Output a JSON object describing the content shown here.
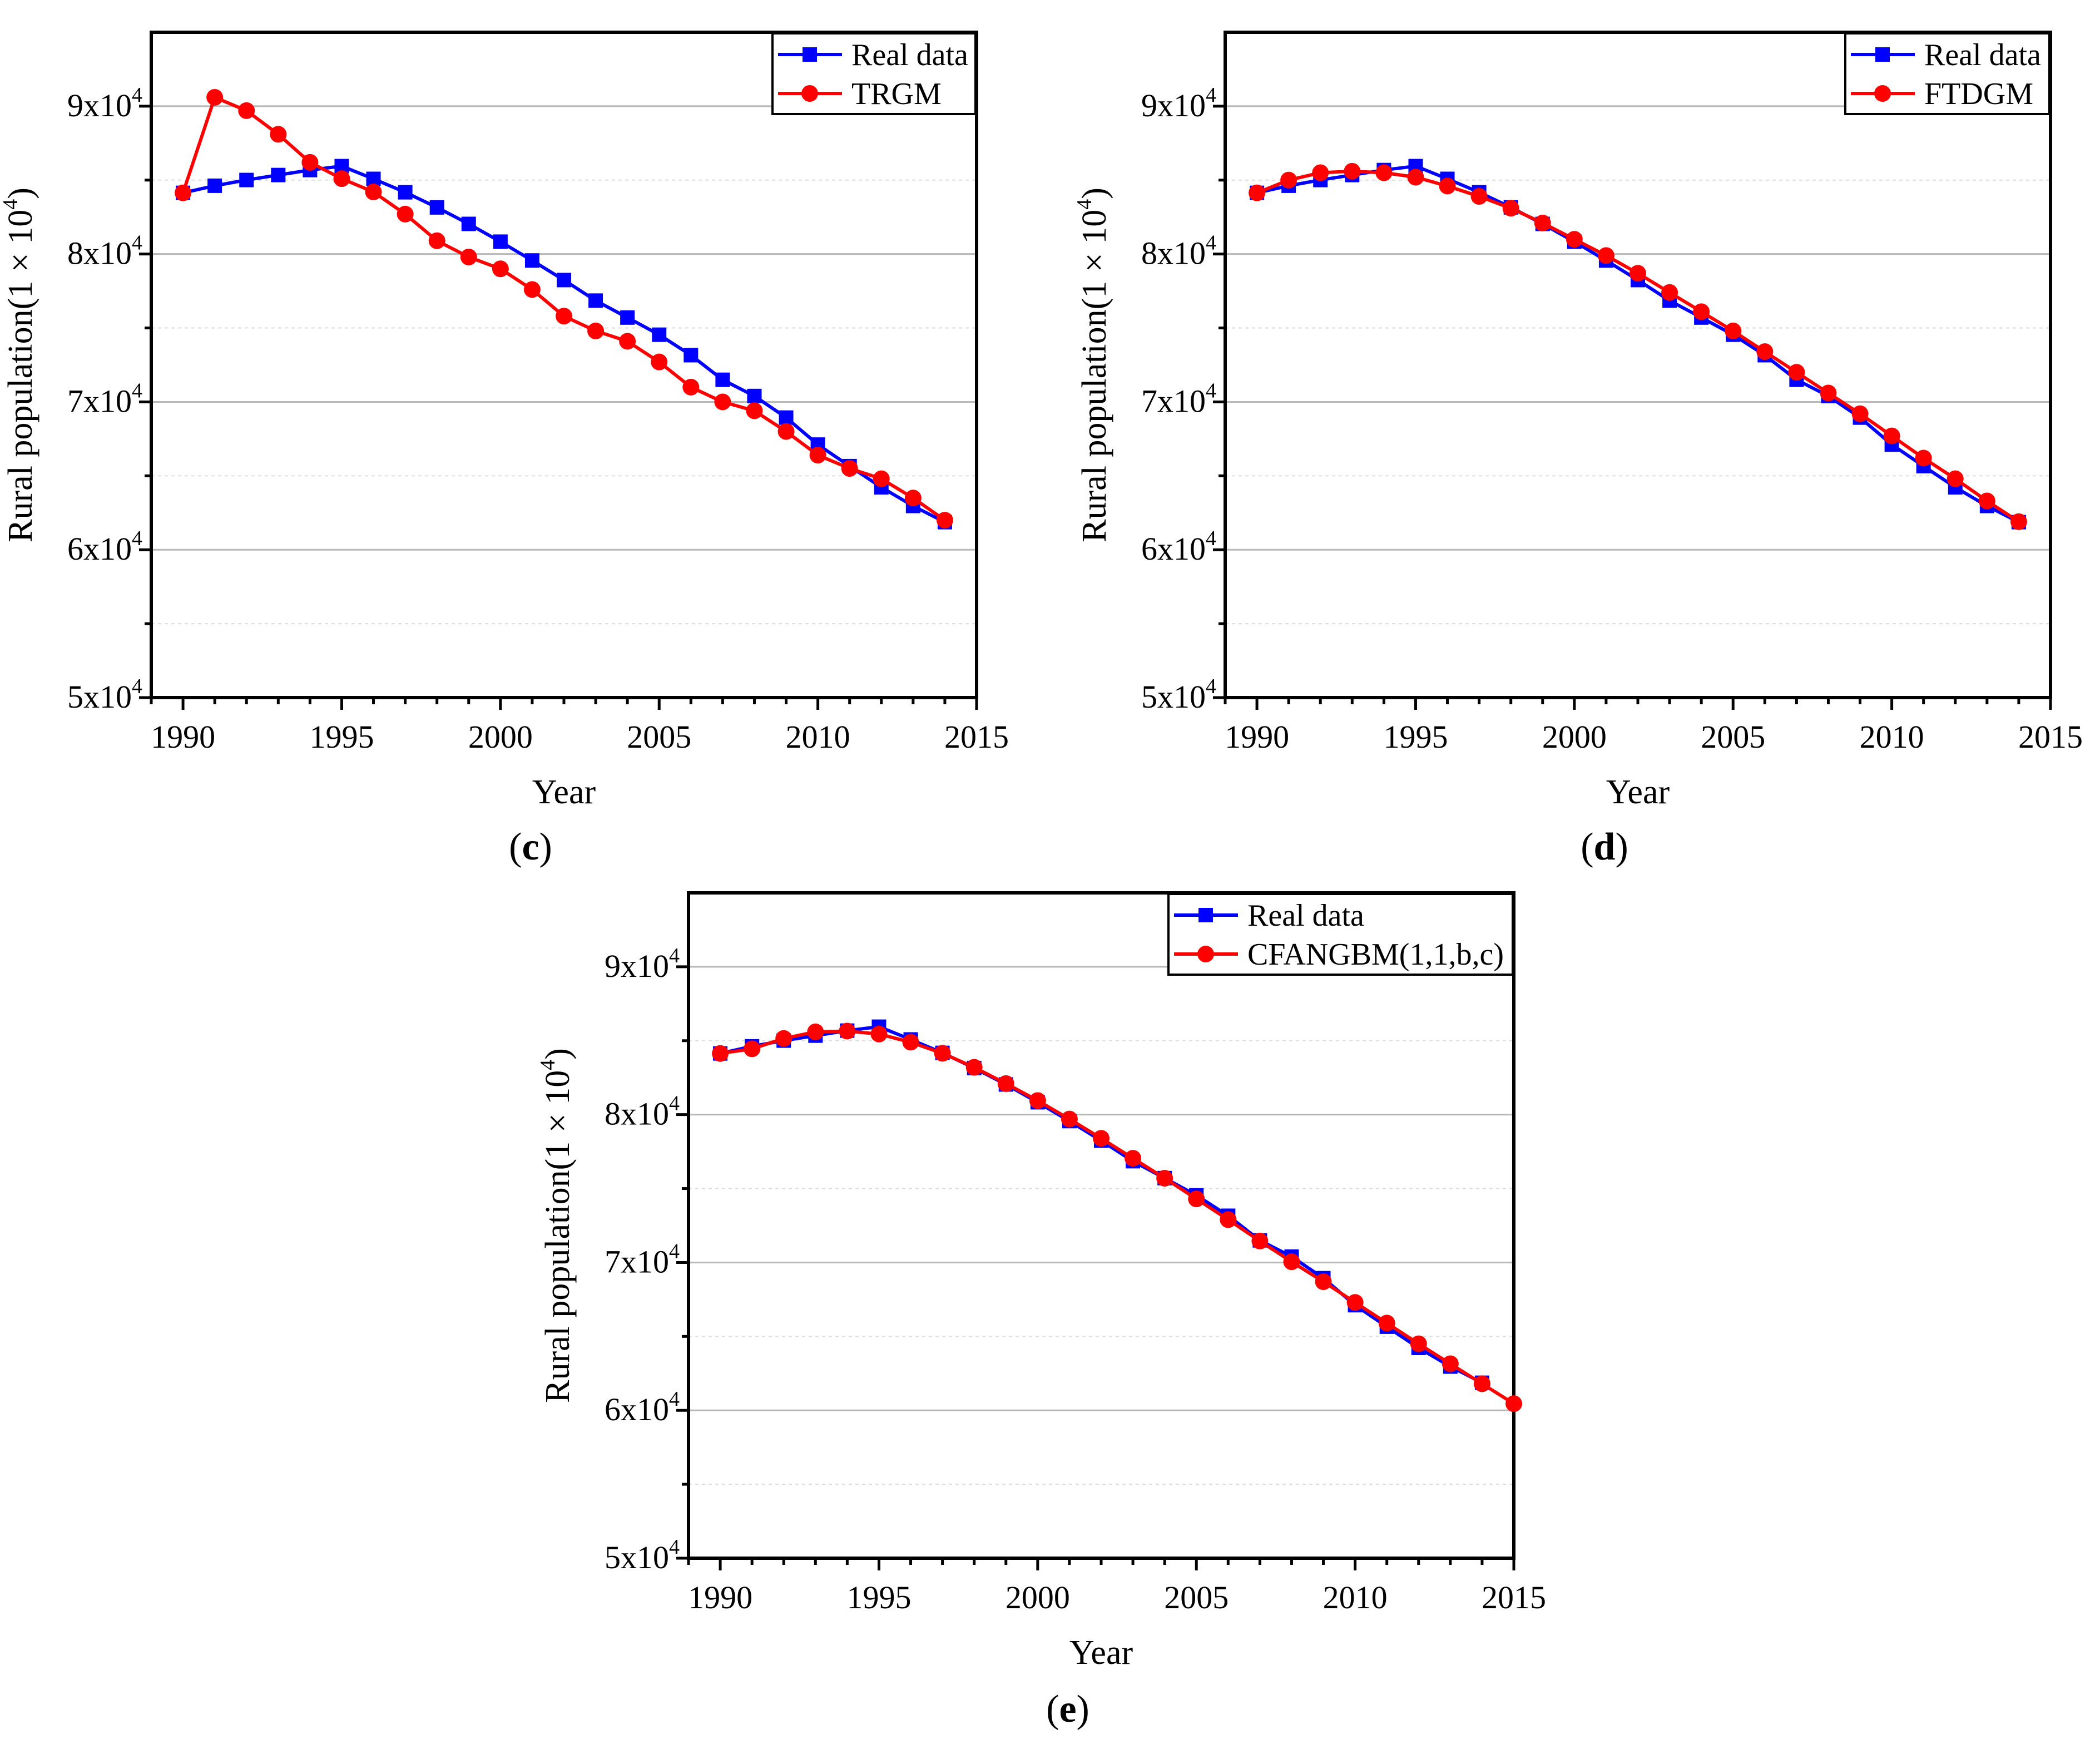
{
  "chart_data": [
    {
      "id": "c",
      "type": "line",
      "panel_label": "c",
      "xlabel": "Year",
      "ylabel_prefix": "Rural population(1",
      "ylabel_times": "×",
      "ylabel_base": "10",
      "ylabel_exp": "4",
      "ylabel_suffix": ")",
      "xlim": [
        1989,
        2015
      ],
      "ylim": [
        50000,
        95000
      ],
      "xticks": [
        1990,
        1995,
        2000,
        2005,
        2010,
        2015
      ],
      "yticks": [
        {
          "value": 50000,
          "mantissa": "5x10",
          "exp": "4"
        },
        {
          "value": 60000,
          "mantissa": "6x10",
          "exp": "4"
        },
        {
          "value": 70000,
          "mantissa": "7x10",
          "exp": "4"
        },
        {
          "value": 80000,
          "mantissa": "8x10",
          "exp": "4"
        },
        {
          "value": 90000,
          "mantissa": "9x10",
          "exp": "4"
        }
      ],
      "minor_grid": [
        55000,
        65000,
        75000,
        85000
      ],
      "legend_position": "top-right",
      "series": [
        {
          "name": "Real data",
          "color": "#0000ff",
          "marker": "square",
          "x": [
            1990,
            1991,
            1992,
            1993,
            1994,
            1995,
            1996,
            1997,
            1998,
            1999,
            2000,
            2001,
            2002,
            2003,
            2004,
            2005,
            2006,
            2007,
            2008,
            2009,
            2010,
            2011,
            2012,
            2013,
            2014
          ],
          "values": [
            84138,
            84620,
            85007,
            85344,
            85681,
            85947,
            85085,
            84177,
            83153,
            82038,
            80837,
            79563,
            78241,
            76851,
            75705,
            74544,
            73160,
            71496,
            70399,
            68938,
            67113,
            65656,
            64222,
            62961,
            61866
          ]
        },
        {
          "name": "TRGM",
          "color": "#ff0000",
          "marker": "circle",
          "x": [
            1990,
            1991,
            1992,
            1993,
            1994,
            1995,
            1996,
            1997,
            1998,
            1999,
            2000,
            2001,
            2002,
            2003,
            2004,
            2005,
            2006,
            2007,
            2008,
            2009,
            2010,
            2011,
            2012,
            2013,
            2014
          ],
          "values": [
            84138,
            90600,
            89700,
            88100,
            86200,
            85100,
            84200,
            82700,
            80900,
            79800,
            79000,
            77600,
            75800,
            74800,
            74100,
            72700,
            71000,
            70000,
            69400,
            68000,
            66400,
            65500,
            64800,
            63500,
            62000
          ]
        }
      ]
    },
    {
      "id": "d",
      "type": "line",
      "panel_label": "d",
      "xlabel": "Year",
      "ylabel_prefix": "Rural population(1",
      "ylabel_times": "×",
      "ylabel_base": "10",
      "ylabel_exp": "4",
      "ylabel_suffix": ")",
      "xlim": [
        1989,
        2015
      ],
      "ylim": [
        50000,
        95000
      ],
      "xticks": [
        1990,
        1995,
        2000,
        2005,
        2010,
        2015
      ],
      "yticks": [
        {
          "value": 50000,
          "mantissa": "5x10",
          "exp": "4"
        },
        {
          "value": 60000,
          "mantissa": "6x10",
          "exp": "4"
        },
        {
          "value": 70000,
          "mantissa": "7x10",
          "exp": "4"
        },
        {
          "value": 80000,
          "mantissa": "8x10",
          "exp": "4"
        },
        {
          "value": 90000,
          "mantissa": "9x10",
          "exp": "4"
        }
      ],
      "minor_grid": [
        55000,
        65000,
        75000,
        85000
      ],
      "legend_position": "top-right",
      "series": [
        {
          "name": "Real data",
          "color": "#0000ff",
          "marker": "square",
          "x": [
            1990,
            1991,
            1992,
            1993,
            1994,
            1995,
            1996,
            1997,
            1998,
            1999,
            2000,
            2001,
            2002,
            2003,
            2004,
            2005,
            2006,
            2007,
            2008,
            2009,
            2010,
            2011,
            2012,
            2013,
            2014
          ],
          "values": [
            84138,
            84620,
            85007,
            85344,
            85681,
            85947,
            85085,
            84177,
            83153,
            82038,
            80837,
            79563,
            78241,
            76851,
            75705,
            74544,
            73160,
            71496,
            70399,
            68938,
            67113,
            65656,
            64222,
            62961,
            61866
          ]
        },
        {
          "name": "FTDGM",
          "color": "#ff0000",
          "marker": "circle",
          "x": [
            1990,
            1991,
            1992,
            1993,
            1994,
            1995,
            1996,
            1997,
            1998,
            1999,
            2000,
            2001,
            2002,
            2003,
            2004,
            2005,
            2006,
            2007,
            2008,
            2009,
            2010,
            2011,
            2012,
            2013,
            2014
          ],
          "values": [
            84138,
            85000,
            85500,
            85600,
            85500,
            85200,
            84600,
            83900,
            83100,
            82100,
            81000,
            79900,
            78700,
            77400,
            76100,
            74800,
            73400,
            72000,
            70600,
            69200,
            67700,
            66200,
            64800,
            63300,
            61900
          ]
        }
      ]
    },
    {
      "id": "e",
      "type": "line",
      "panel_label": "e",
      "xlabel": "Year",
      "ylabel_prefix": "Rural population(1",
      "ylabel_times": "×",
      "ylabel_base": "10",
      "ylabel_exp": "4",
      "ylabel_suffix": ")",
      "xlim": [
        1989,
        2015
      ],
      "ylim": [
        50000,
        95000
      ],
      "xticks": [
        1990,
        1995,
        2000,
        2005,
        2010,
        2015
      ],
      "yticks": [
        {
          "value": 50000,
          "mantissa": "5x10",
          "exp": "4"
        },
        {
          "value": 60000,
          "mantissa": "6x10",
          "exp": "4"
        },
        {
          "value": 70000,
          "mantissa": "7x10",
          "exp": "4"
        },
        {
          "value": 80000,
          "mantissa": "8x10",
          "exp": "4"
        },
        {
          "value": 90000,
          "mantissa": "9x10",
          "exp": "4"
        }
      ],
      "minor_grid": [
        55000,
        65000,
        75000,
        85000
      ],
      "legend_position": "top-right",
      "series": [
        {
          "name": "Real data",
          "color": "#0000ff",
          "marker": "square",
          "x": [
            1990,
            1991,
            1992,
            1993,
            1994,
            1995,
            1996,
            1997,
            1998,
            1999,
            2000,
            2001,
            2002,
            2003,
            2004,
            2005,
            2006,
            2007,
            2008,
            2009,
            2010,
            2011,
            2012,
            2013,
            2014
          ],
          "values": [
            84138,
            84620,
            85007,
            85344,
            85681,
            85947,
            85085,
            84177,
            83153,
            82038,
            80837,
            79563,
            78241,
            76851,
            75705,
            74544,
            73160,
            71496,
            70399,
            68938,
            67113,
            65656,
            64222,
            62961,
            61866
          ]
        },
        {
          "name": "CFANGBM(1,1,b,c)",
          "color": "#ff0000",
          "marker": "circle",
          "x": [
            1990,
            1991,
            1992,
            1993,
            1994,
            1995,
            1996,
            1997,
            1998,
            1999,
            2000,
            2001,
            2002,
            2003,
            2004,
            2005,
            2006,
            2007,
            2008,
            2009,
            2010,
            2011,
            2012,
            2013,
            2014,
            2015
          ],
          "values": [
            84138,
            84450,
            85150,
            85600,
            85650,
            85450,
            84900,
            84150,
            83200,
            82100,
            80950,
            79700,
            78400,
            77050,
            75700,
            74300,
            72900,
            71450,
            70050,
            68700,
            67300,
            65900,
            64500,
            63150,
            61800,
            60450
          ]
        }
      ]
    }
  ]
}
